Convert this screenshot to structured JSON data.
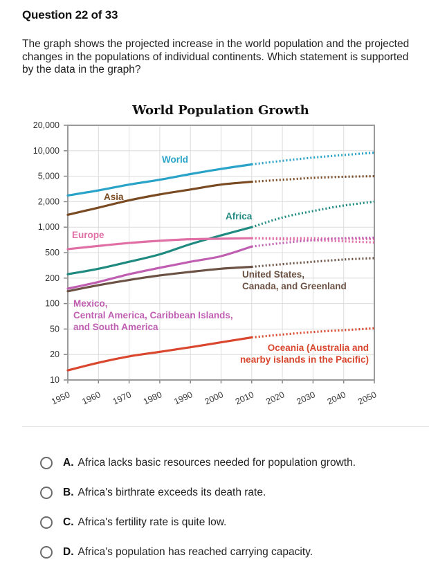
{
  "question": {
    "header": "Question 22 of 33",
    "prompt": "The graph shows the projected increase in the world population and the projected changes in the populations of individual continents. Which statement is supported by the data in the graph?"
  },
  "chart_data": {
    "type": "line",
    "title": "World Population Growth",
    "xlabel": "",
    "ylabel": "",
    "y_scale": "log",
    "x_ticks": [
      "1950",
      "1960",
      "1970",
      "1980",
      "1990",
      "2000",
      "2010",
      "2020",
      "2030",
      "2040",
      "2050"
    ],
    "y_ticks": [
      "20,000",
      "10,000",
      "5,000",
      "2,000",
      "1,000",
      "500",
      "200",
      "100",
      "50",
      "20",
      "10"
    ],
    "y_tick_values": [
      20000,
      10000,
      5000,
      2000,
      1000,
      500,
      200,
      100,
      50,
      20,
      10
    ],
    "xlim": [
      1950,
      2050
    ],
    "ylim": [
      10,
      20000
    ],
    "grid": true,
    "actual_until": 2010,
    "projected_style": "dotted",
    "x": [
      1950,
      1960,
      1970,
      1980,
      1990,
      2000,
      2010,
      2020,
      2030,
      2040,
      2050
    ],
    "series": [
      {
        "name": "World",
        "label": "World",
        "color": "#2aa3c9",
        "values": [
          2500,
          3000,
          3700,
          4400,
          5300,
          6100,
          6900,
          7600,
          8300,
          8900,
          9500
        ]
      },
      {
        "name": "Asia",
        "label": "Asia",
        "color": "#7a4a22",
        "values": [
          1400,
          1700,
          2100,
          2600,
          3100,
          3700,
          4100,
          4400,
          4700,
          4900,
          5000
        ]
      },
      {
        "name": "Africa",
        "label": "Africa",
        "color": "#1f8a80",
        "values": [
          230,
          280,
          360,
          470,
          630,
          800,
          1000,
          1300,
          1550,
          1800,
          2000
        ]
      },
      {
        "name": "Europe",
        "label": "Europe",
        "color": "#e06fa5",
        "values": [
          550,
          600,
          650,
          690,
          720,
          730,
          740,
          740,
          740,
          730,
          720
        ]
      },
      {
        "name": "Europe (projection alt)",
        "label": "",
        "color": "#e06fa5",
        "projection_only": true,
        "values": [
          null,
          null,
          null,
          null,
          null,
          null,
          740,
          720,
          700,
          680,
          660
        ]
      },
      {
        "name": "Mexico, Central America, Caribbean Islands, and South America",
        "label": "Mexico,\nCentral America, Caribbean Islands,\nand South America",
        "color": "#c05fb2",
        "values": [
          150,
          180,
          230,
          290,
          360,
          440,
          590,
          650,
          700,
          740,
          750
        ]
      },
      {
        "name": "United States, Canada, and Greenland",
        "label": "United States,\nCanada, and Greenland",
        "color": "#6b5244",
        "values": [
          140,
          165,
          190,
          220,
          250,
          280,
          300,
          330,
          360,
          390,
          410
        ]
      },
      {
        "name": "Oceania (Australia and nearby islands in the Pacific)",
        "label": "Oceania (Australia and\nnearby islands in the Pacific)",
        "color": "#d9472f",
        "values": [
          13,
          16,
          19,
          22,
          26,
          31,
          37,
          41,
          45,
          48,
          51
        ]
      }
    ]
  },
  "options": [
    {
      "letter": "A.",
      "text": "Africa lacks basic resources needed for population growth."
    },
    {
      "letter": "B.",
      "text": "Africa's birthrate exceeds its death rate."
    },
    {
      "letter": "C.",
      "text": "Africa's fertility rate is quite low."
    },
    {
      "letter": "D.",
      "text": "Africa's population has reached carrying capacity."
    }
  ]
}
